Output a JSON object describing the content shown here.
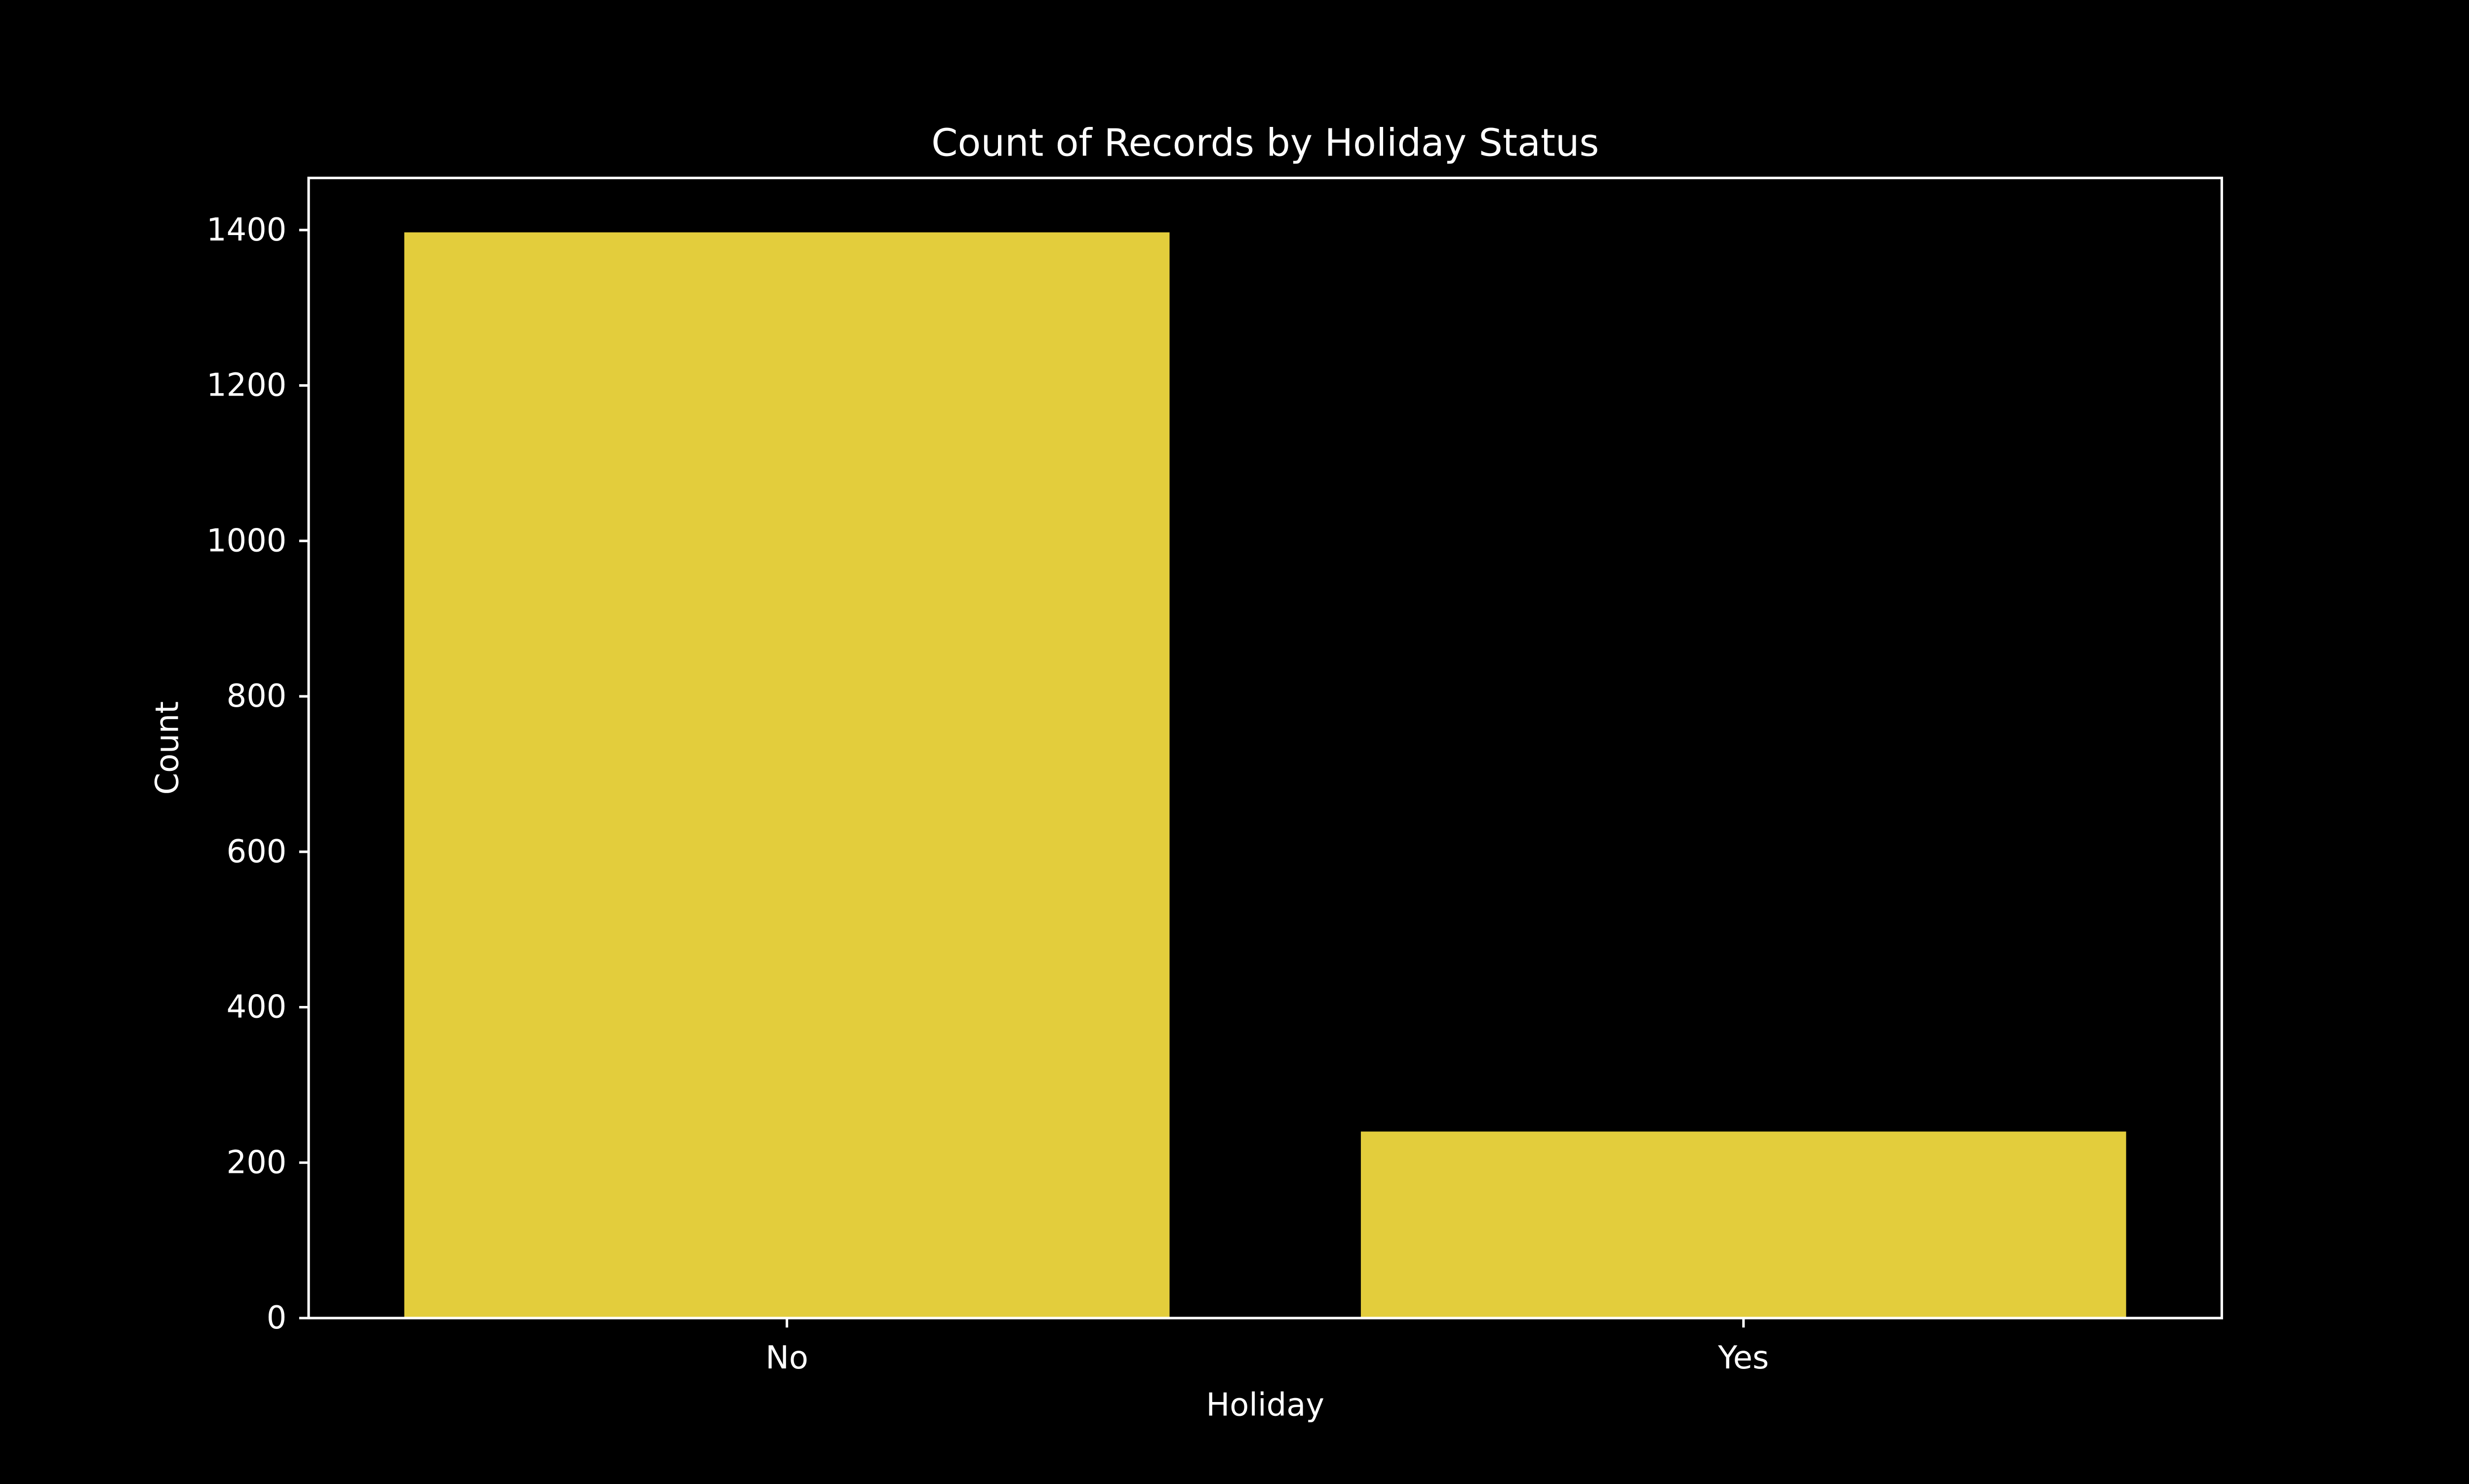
{
  "chart_data": {
    "type": "bar",
    "title": "Count of Records by Holiday Status",
    "xlabel": "Holiday",
    "ylabel": "Count",
    "categories": [
      "No",
      "Yes"
    ],
    "values": [
      1397,
      240
    ],
    "ylim": [
      0,
      1467
    ],
    "yticks": [
      0,
      200,
      400,
      600,
      800,
      1000,
      1200,
      1400
    ],
    "grid": false,
    "legend": "none",
    "colors": {
      "background": "#000000",
      "bar": "#e3cd3c",
      "axes": "#ffffff",
      "text": "#ffffff"
    }
  }
}
